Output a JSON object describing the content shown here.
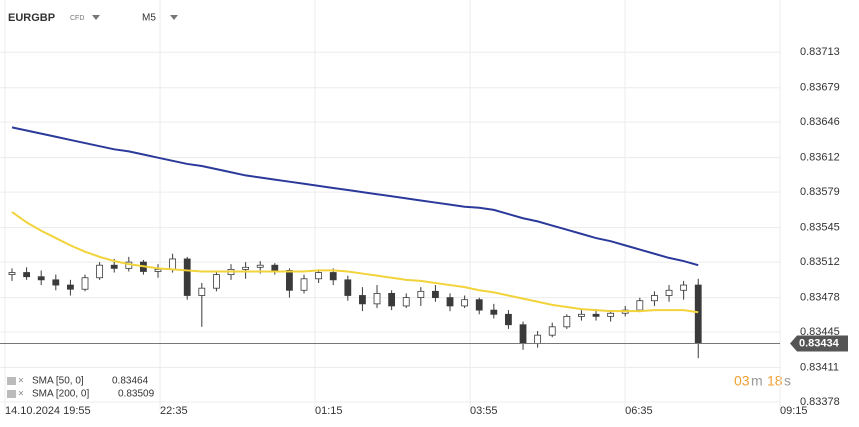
{
  "header": {
    "symbol": "EURGBP",
    "kind": "CFD",
    "timeframe": "M5"
  },
  "countdown": [
    "03",
    "m",
    "18",
    "s"
  ],
  "chart_data": {
    "type": "candlestick",
    "ylim": [
      0.83378,
      0.83763
    ],
    "yticks": [
      0.83378,
      0.83411,
      0.83445,
      0.83478,
      0.83512,
      0.83545,
      0.83579,
      0.83612,
      0.83646,
      0.83679,
      0.83713
    ],
    "xlim": [
      -0.48,
      52.6
    ],
    "xticks": [
      {
        "value": -0.48,
        "label": "14.10.2024 19:55"
      },
      {
        "value": 10.14,
        "label": "22:35"
      },
      {
        "value": 20.75,
        "label": "01:15"
      },
      {
        "value": 31.37,
        "label": "03:55"
      },
      {
        "value": 41.99,
        "label": "06:35"
      },
      {
        "value": 52.6,
        "label": "09:15"
      }
    ],
    "grid": true,
    "up_color": "#ffffff",
    "down_color": "#3a3a3a",
    "ohlc": [
      [
        0.835,
        0.83506,
        0.83494,
        0.83502
      ],
      [
        0.83502,
        0.83507,
        0.83495,
        0.83498
      ],
      [
        0.83498,
        0.83504,
        0.8349,
        0.83495
      ],
      [
        0.83495,
        0.835,
        0.83485,
        0.8349
      ],
      [
        0.8349,
        0.83495,
        0.8348,
        0.83486
      ],
      [
        0.83486,
        0.835,
        0.83484,
        0.83497
      ],
      [
        0.83497,
        0.83512,
        0.83495,
        0.83509
      ],
      [
        0.83509,
        0.83515,
        0.83502,
        0.83506
      ],
      [
        0.83506,
        0.83517,
        0.83503,
        0.83512
      ],
      [
        0.83512,
        0.83514,
        0.835,
        0.83503
      ],
      [
        0.83503,
        0.8351,
        0.83497,
        0.83505
      ],
      [
        0.83505,
        0.8352,
        0.83502,
        0.83515
      ],
      [
        0.83515,
        0.83517,
        0.83476,
        0.8348
      ],
      [
        0.8348,
        0.83492,
        0.8345,
        0.83487
      ],
      [
        0.83487,
        0.83503,
        0.83484,
        0.835
      ],
      [
        0.835,
        0.8351,
        0.83495,
        0.83505
      ],
      [
        0.83505,
        0.83512,
        0.83496,
        0.83507
      ],
      [
        0.83507,
        0.83513,
        0.83501,
        0.83509
      ],
      [
        0.83509,
        0.83511,
        0.835,
        0.83504
      ],
      [
        0.83504,
        0.83506,
        0.83478,
        0.83485
      ],
      [
        0.83485,
        0.835,
        0.83482,
        0.83496
      ],
      [
        0.83496,
        0.83505,
        0.83492,
        0.83502
      ],
      [
        0.83502,
        0.83506,
        0.8349,
        0.83495
      ],
      [
        0.83495,
        0.83499,
        0.83475,
        0.8348
      ],
      [
        0.8348,
        0.83488,
        0.83465,
        0.83472
      ],
      [
        0.83472,
        0.8349,
        0.83468,
        0.83482
      ],
      [
        0.83482,
        0.83485,
        0.83466,
        0.8347
      ],
      [
        0.8347,
        0.83482,
        0.83468,
        0.83478
      ],
      [
        0.83478,
        0.83488,
        0.8347,
        0.83484
      ],
      [
        0.83484,
        0.8349,
        0.83474,
        0.83478
      ],
      [
        0.83478,
        0.83482,
        0.83465,
        0.8347
      ],
      [
        0.8347,
        0.8348,
        0.83468,
        0.83476
      ],
      [
        0.83476,
        0.83478,
        0.83462,
        0.83466
      ],
      [
        0.83466,
        0.83472,
        0.83458,
        0.83462
      ],
      [
        0.83462,
        0.83466,
        0.83448,
        0.83452
      ],
      [
        0.83452,
        0.83455,
        0.83428,
        0.83434
      ],
      [
        0.83434,
        0.83446,
        0.8343,
        0.83442
      ],
      [
        0.83442,
        0.83454,
        0.8344,
        0.8345
      ],
      [
        0.8345,
        0.83462,
        0.83448,
        0.8346
      ],
      [
        0.8346,
        0.83466,
        0.83456,
        0.83462
      ],
      [
        0.83462,
        0.83467,
        0.83456,
        0.8346
      ],
      [
        0.8346,
        0.83466,
        0.83455,
        0.83463
      ],
      [
        0.83463,
        0.8347,
        0.8346,
        0.83466
      ],
      [
        0.83466,
        0.83478,
        0.83464,
        0.83475
      ],
      [
        0.83475,
        0.83484,
        0.8347,
        0.8348
      ],
      [
        0.8348,
        0.8349,
        0.83474,
        0.83485
      ],
      [
        0.83485,
        0.83494,
        0.83476,
        0.8349
      ],
      [
        0.8349,
        0.83496,
        0.8342,
        0.83434
      ]
    ],
    "series": [
      {
        "name": "SMA [50, 0]",
        "color": "#f2d33b",
        "values": [
          0.8356,
          0.8355,
          0.83542,
          0.83535,
          0.83528,
          0.83522,
          0.83517,
          0.83513,
          0.8351,
          0.83508,
          0.83506,
          0.83505,
          0.83504,
          0.83503,
          0.83503,
          0.83503,
          0.83503,
          0.83503,
          0.83503,
          0.83503,
          0.83503,
          0.83504,
          0.83504,
          0.83503,
          0.83501,
          0.83499,
          0.83497,
          0.83495,
          0.83494,
          0.83492,
          0.8349,
          0.83488,
          0.83485,
          0.83483,
          0.8348,
          0.83477,
          0.83474,
          0.83471,
          0.83469,
          0.83467,
          0.83466,
          0.83465,
          0.83465,
          0.83465,
          0.83466,
          0.83466,
          0.83466,
          0.83464
        ]
      },
      {
        "name": "SMA [200, 0]",
        "color": "#2b3a9a",
        "values": [
          0.83641,
          0.83638,
          0.83635,
          0.83632,
          0.83629,
          0.83626,
          0.83623,
          0.8362,
          0.83618,
          0.83615,
          0.83612,
          0.83609,
          0.83606,
          0.83604,
          0.83601,
          0.83598,
          0.83595,
          0.83593,
          0.83591,
          0.83589,
          0.83587,
          0.83585,
          0.83583,
          0.83581,
          0.83579,
          0.83577,
          0.83575,
          0.83573,
          0.83571,
          0.83569,
          0.83567,
          0.83565,
          0.83564,
          0.83562,
          0.83558,
          0.83554,
          0.83551,
          0.83547,
          0.83543,
          0.83539,
          0.83535,
          0.83532,
          0.83528,
          0.83524,
          0.8352,
          0.83516,
          0.83513,
          0.83509
        ]
      }
    ]
  }
}
